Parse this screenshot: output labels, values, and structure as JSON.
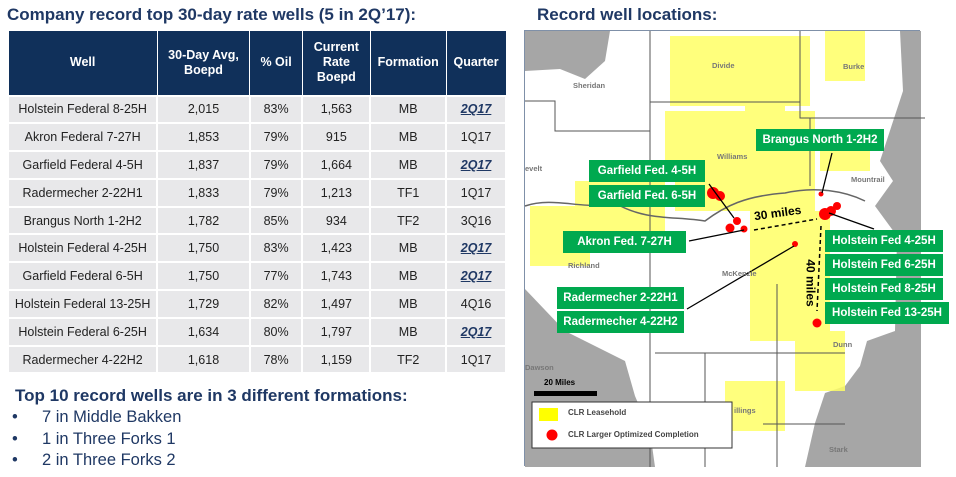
{
  "left_title": "Company record top 30-day rate wells (5 in 2Q’17):",
  "right_title": "Record well locations:",
  "chart_data": {
    "type": "table",
    "columns": [
      "Well",
      "30-Day Avg, Boepd",
      "% Oil",
      "Current Rate Boepd",
      "Formation",
      "Quarter"
    ],
    "rows": [
      [
        "Holstein Federal 8-25H",
        "2,015",
        "83%",
        "1,563",
        "MB",
        "2Q17"
      ],
      [
        "Akron Federal 7-27H",
        "1,853",
        "79%",
        "915",
        "MB",
        "1Q17"
      ],
      [
        "Garfield Federal 4-5H",
        "1,837",
        "79%",
        "1,664",
        "MB",
        "2Q17"
      ],
      [
        "Radermecher 2-22H1",
        "1,833",
        "79%",
        "1,213",
        "TF1",
        "1Q17"
      ],
      [
        "Brangus North 1-2H2",
        "1,782",
        "85%",
        "934",
        "TF2",
        "3Q16"
      ],
      [
        "Holstein Federal 4-25H",
        "1,750",
        "83%",
        "1,423",
        "MB",
        "2Q17"
      ],
      [
        "Garfield Federal 6-5H",
        "1,750",
        "77%",
        "1,743",
        "MB",
        "2Q17"
      ],
      [
        "Holstein Federal 13-25H",
        "1,729",
        "82%",
        "1,497",
        "MB",
        "4Q16"
      ],
      [
        "Holstein Federal 6-25H",
        "1,634",
        "80%",
        "1,797",
        "MB",
        "2Q17"
      ],
      [
        "Radermecher 4-22H2",
        "1,618",
        "78%",
        "1,159",
        "TF2",
        "1Q17"
      ]
    ]
  },
  "summary": {
    "heading": "Top 10 record wells are in 3 different formations:",
    "bullet": "•",
    "items": [
      "7 in Middle Bakken",
      "1 in Three Forks 1",
      "2 in Three Forks 2"
    ]
  },
  "map": {
    "labels": [
      "Brangus North 1-2H2",
      "Garfield Fed. 4-5H",
      "Garfield Fed. 6-5H",
      "Akron Fed. 7-27H",
      "Radermecher 2-22H1",
      "Radermecher 4-22H2",
      "Holstein Fed 4-25H",
      "Holstein Fed 6-25H",
      "Holstein Fed 8-25H",
      "Holstein Fed 13-25H"
    ],
    "places": [
      "Divide",
      "Burke",
      "Sheridan",
      "Williams",
      "Mountrail",
      "evelt",
      "Richland",
      "McKenzie",
      "Dunn",
      "Dawson",
      "illings",
      "Stark"
    ],
    "distance_h": "30 miles",
    "distance_v": "40 miles",
    "scale": "20 Miles",
    "legend": [
      "CLR Leasehold",
      "CLR Larger Optimized Completion"
    ],
    "colors": {
      "leasehold": "#ffff66",
      "completion": "#ff0000",
      "label": "#00a94f"
    }
  }
}
